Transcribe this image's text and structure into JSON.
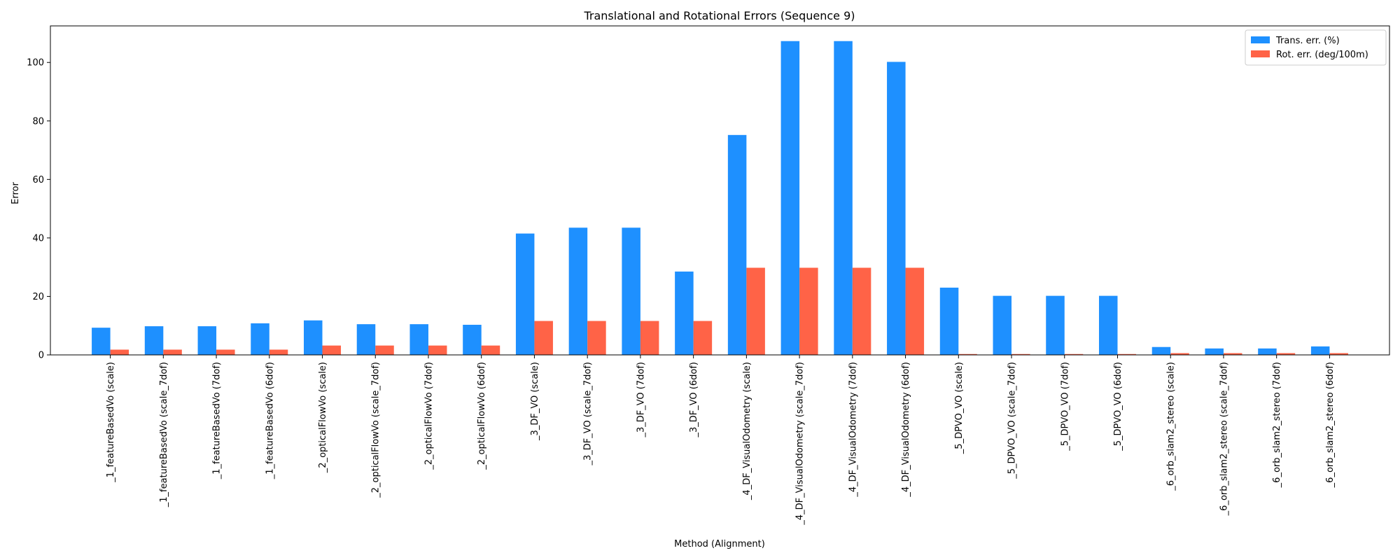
{
  "chart_data": {
    "type": "bar",
    "title": "Translational and Rotational Errors (Sequence 9)",
    "xlabel": "Method (Alignment)",
    "ylabel": "Error",
    "ylim": [
      0,
      112.5
    ],
    "yticks": [
      0,
      20,
      40,
      60,
      80,
      100
    ],
    "grid": false,
    "legend_position": "top-right",
    "categories": [
      "_1_featureBasedVo (scale)",
      "_1_featureBasedVo (scale_7dof)",
      "_1_featureBasedVo (7dof)",
      "_1_featureBasedVo (6dof)",
      "_2_opticalFlowVo (scale)",
      "_2_opticalFlowVo (scale_7dof)",
      "_2_opticalFlowVo (7dof)",
      "_2_opticalFlowVo (6dof)",
      "_3_DF_VO (scale)",
      "_3_DF_VO (scale_7dof)",
      "_3_DF_VO (7dof)",
      "_3_DF_VO (6dof)",
      "_4_DF_VisualOdometry (scale)",
      "_4_DF_VisualOdometry (scale_7dof)",
      "_4_DF_VisualOdometry (7dof)",
      "_4_DF_VisualOdometry (6dof)",
      "_5_DPVO_VO (scale)",
      "_5_DPVO_VO (scale_7dof)",
      "_5_DPVO_VO (7dof)",
      "_5_DPVO_VO (6dof)",
      "_6_orb_slam2_stereo (scale)",
      "_6_orb_slam2_stereo (scale_7dof)",
      "_6_orb_slam2_stereo (7dof)",
      "_6_orb_slam2_stereo (6dof)"
    ],
    "series": [
      {
        "name": "Trans. err. (%)",
        "color": "#1E90FF",
        "values": [
          9.3,
          9.8,
          9.8,
          10.8,
          11.8,
          10.5,
          10.5,
          10.3,
          41.5,
          43.5,
          43.5,
          28.5,
          75.2,
          107.3,
          107.3,
          100.2,
          23.0,
          20.2,
          20.2,
          20.2,
          2.7,
          2.2,
          2.2,
          2.9
        ]
      },
      {
        "name": "Rot. err. (deg/100m)",
        "color": "#FF6347",
        "values": [
          1.8,
          1.8,
          1.8,
          1.8,
          3.2,
          3.2,
          3.2,
          3.2,
          11.6,
          11.6,
          11.6,
          11.6,
          29.8,
          29.8,
          29.8,
          29.8,
          0.3,
          0.3,
          0.3,
          0.3,
          0.6,
          0.6,
          0.6,
          0.6
        ]
      }
    ]
  }
}
